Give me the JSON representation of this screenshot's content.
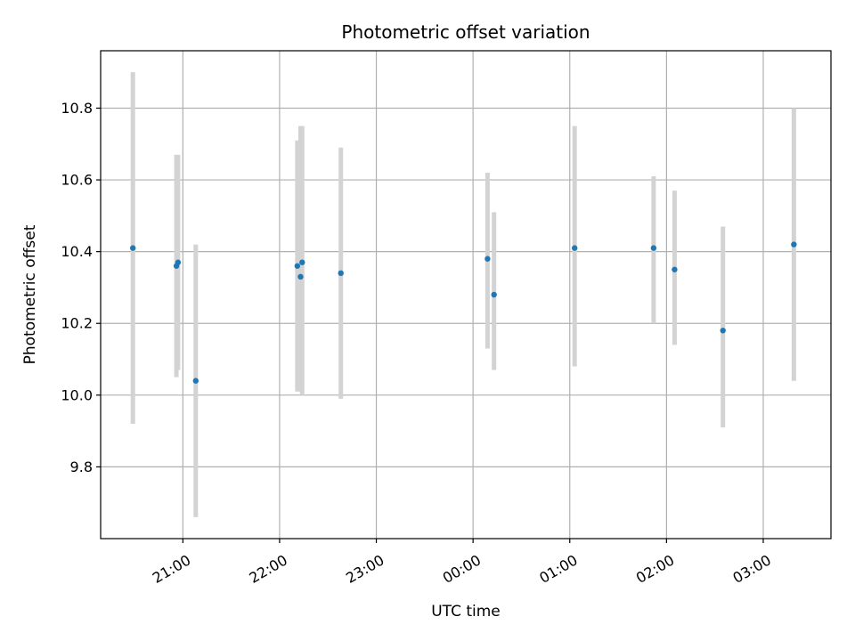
{
  "chart_data": {
    "type": "scatter",
    "title": "Photometric offset variation",
    "xlabel": "UTC time",
    "ylabel": "Photometric offset",
    "x_axis": {
      "kind": "time",
      "range": [
        "2000-01-01T20:09:00",
        "2000-01-02T03:42:00"
      ],
      "ticks": [
        {
          "t": "2000-01-01T21:00:00",
          "label": "21:00"
        },
        {
          "t": "2000-01-01T22:00:00",
          "label": "22:00"
        },
        {
          "t": "2000-01-01T23:00:00",
          "label": "23:00"
        },
        {
          "t": "2000-01-02T00:00:00",
          "label": "00:00"
        },
        {
          "t": "2000-01-02T01:00:00",
          "label": "01:00"
        },
        {
          "t": "2000-01-02T02:00:00",
          "label": "02:00"
        },
        {
          "t": "2000-01-02T03:00:00",
          "label": "03:00"
        }
      ]
    },
    "y_axis": {
      "range": [
        9.6,
        10.96
      ],
      "ticks": [
        9.8,
        10.0,
        10.2,
        10.4,
        10.6,
        10.8
      ],
      "tick_labels": [
        "9.8",
        "10.0",
        "10.2",
        "10.4",
        "10.6",
        "10.8"
      ]
    },
    "grid": true,
    "colors": {
      "point": "#1f77b4",
      "error_bar": "#d3d3d3",
      "grid": "#b0b0b0"
    },
    "points": [
      {
        "t": "2000-01-01T20:29:00",
        "y": 10.41,
        "ylow": 9.92,
        "yhigh": 10.9
      },
      {
        "t": "2000-01-01T20:56:00",
        "y": 10.36,
        "ylow": 10.05,
        "yhigh": 10.67
      },
      {
        "t": "2000-01-01T20:57:00",
        "y": 10.37,
        "ylow": 10.07,
        "yhigh": 10.67
      },
      {
        "t": "2000-01-01T21:08:00",
        "y": 10.04,
        "ylow": 9.66,
        "yhigh": 10.42
      },
      {
        "t": "2000-01-01T22:11:00",
        "y": 10.36,
        "ylow": 10.01,
        "yhigh": 10.71
      },
      {
        "t": "2000-01-01T22:13:00",
        "y": 10.33,
        "ylow": 10.01,
        "yhigh": 10.75
      },
      {
        "t": "2000-01-01T22:14:00",
        "y": 10.37,
        "ylow": 10.0,
        "yhigh": 10.75
      },
      {
        "t": "2000-01-01T22:38:00",
        "y": 10.34,
        "ylow": 9.99,
        "yhigh": 10.69
      },
      {
        "t": "2000-01-02T00:09:00",
        "y": 10.38,
        "ylow": 10.13,
        "yhigh": 10.62
      },
      {
        "t": "2000-01-02T00:13:00",
        "y": 10.28,
        "ylow": 10.07,
        "yhigh": 10.51
      },
      {
        "t": "2000-01-02T01:03:00",
        "y": 10.41,
        "ylow": 10.08,
        "yhigh": 10.75
      },
      {
        "t": "2000-01-02T01:52:00",
        "y": 10.41,
        "ylow": 10.2,
        "yhigh": 10.61
      },
      {
        "t": "2000-01-02T02:05:00",
        "y": 10.35,
        "ylow": 10.14,
        "yhigh": 10.57
      },
      {
        "t": "2000-01-02T02:35:00",
        "y": 10.18,
        "ylow": 9.91,
        "yhigh": 10.47
      },
      {
        "t": "2000-01-02T03:19:00",
        "y": 10.42,
        "ylow": 10.04,
        "yhigh": 10.8
      }
    ]
  }
}
